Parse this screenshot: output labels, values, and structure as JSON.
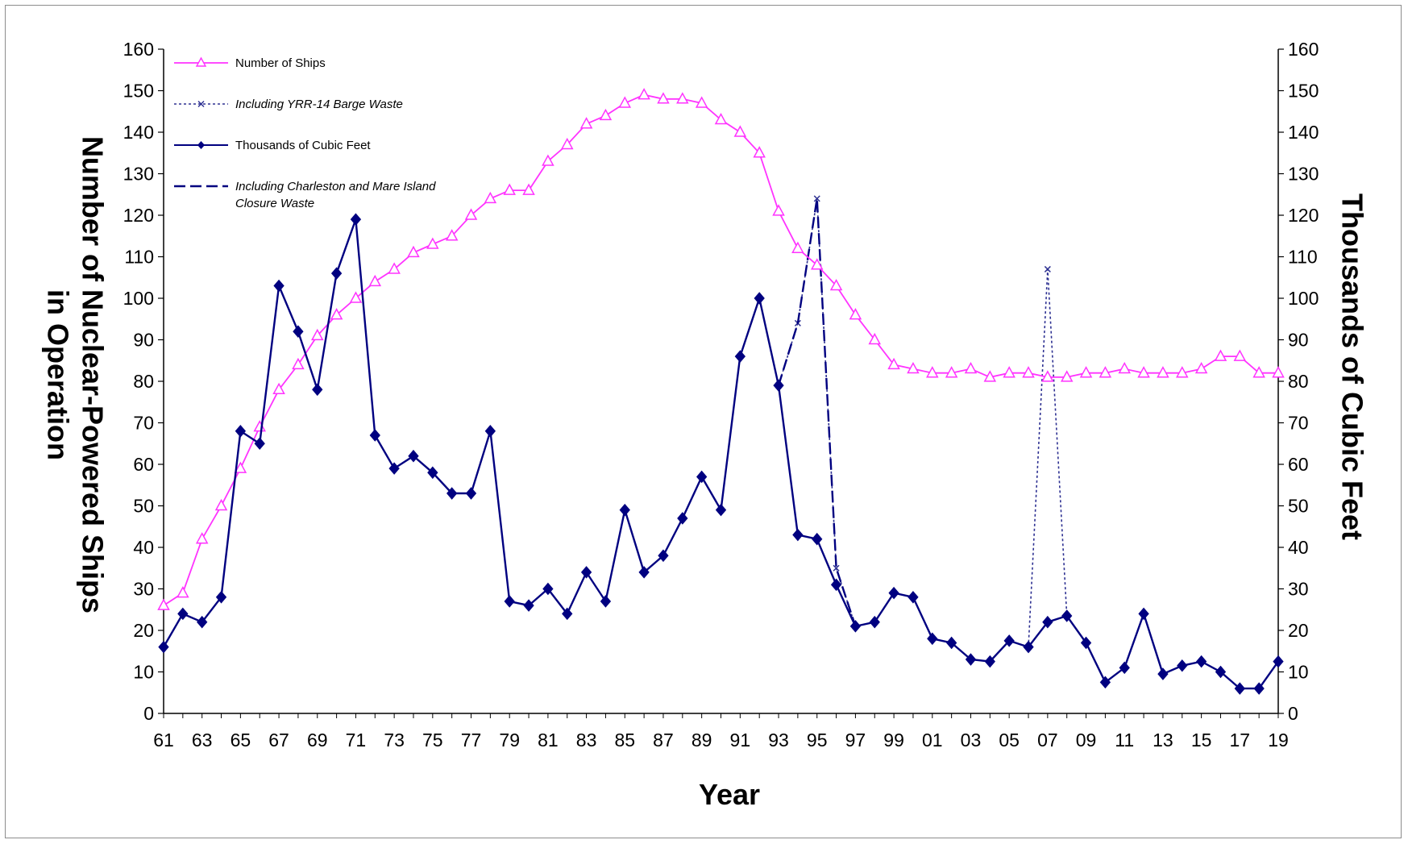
{
  "chart_data": {
    "type": "line",
    "xlabel": "Year",
    "ylabel_left": [
      "Number of Nuclear-Powered Ships",
      "in Operation"
    ],
    "ylabel_right": "Thousands of Cubic Feet",
    "ylim": [
      0,
      160
    ],
    "y_ticks": [
      0,
      10,
      20,
      30,
      40,
      50,
      60,
      70,
      80,
      90,
      100,
      110,
      120,
      130,
      140,
      150,
      160
    ],
    "x_ticks": [
      "61",
      "63",
      "65",
      "67",
      "69",
      "71",
      "73",
      "75",
      "77",
      "79",
      "81",
      "83",
      "85",
      "87",
      "89",
      "91",
      "93",
      "95",
      "97",
      "99",
      "01",
      "03",
      "05",
      "07",
      "09",
      "11",
      "13",
      "15",
      "17",
      "19"
    ],
    "grid": false,
    "legend": {
      "placement": "top-left",
      "entries": [
        {
          "label": "Number of Ships",
          "italic": false
        },
        {
          "label": "Including YRR-14 Barge Waste",
          "italic": true
        },
        {
          "label": "Thousands of Cubic Feet",
          "italic": false
        },
        {
          "label_lines": [
            "Including Charleston and Mare Island",
            "Closure Waste"
          ],
          "italic": true
        }
      ]
    },
    "colors": {
      "ships": "#ff33ff",
      "cubic_feet": "#000080",
      "yrr14": "#2e3192",
      "charleston": "#000080"
    },
    "series": [
      {
        "name": "Number of Ships",
        "x": [
          1961,
          1962,
          1963,
          1964,
          1965,
          1966,
          1967,
          1968,
          1969,
          1970,
          1971,
          1972,
          1973,
          1974,
          1975,
          1976,
          1977,
          1978,
          1979,
          1980,
          1981,
          1982,
          1983,
          1984,
          1985,
          1986,
          1987,
          1988,
          1989,
          1990,
          1991,
          1992,
          1993,
          1994,
          1995,
          1996,
          1997,
          1998,
          1999,
          2000,
          2001,
          2002,
          2003,
          2004,
          2005,
          2006,
          2007,
          2008,
          2009,
          2010,
          2011,
          2012,
          2013,
          2014,
          2015,
          2016,
          2017,
          2018,
          2019
        ],
        "values": [
          26,
          29,
          42,
          50,
          59,
          69,
          78,
          84,
          91,
          96,
          100,
          104,
          107,
          111,
          113,
          115,
          120,
          124,
          126,
          126,
          133,
          137,
          142,
          144,
          147,
          149,
          148,
          148,
          147,
          143,
          140,
          135,
          121,
          112,
          108,
          103,
          96,
          90,
          84,
          83,
          82,
          82,
          83,
          81,
          82,
          82,
          81,
          81,
          82,
          82,
          83,
          82,
          82,
          82,
          83,
          86,
          86,
          82,
          82
        ]
      },
      {
        "name": "Thousands of Cubic Feet",
        "x": [
          1961,
          1962,
          1963,
          1964,
          1965,
          1966,
          1967,
          1968,
          1969,
          1970,
          1971,
          1972,
          1973,
          1974,
          1975,
          1976,
          1977,
          1978,
          1979,
          1980,
          1981,
          1982,
          1983,
          1984,
          1985,
          1986,
          1987,
          1988,
          1989,
          1990,
          1991,
          1992,
          1993,
          1994,
          1995,
          1996,
          1997,
          1998,
          1999,
          2000,
          2001,
          2002,
          2003,
          2004,
          2005,
          2006,
          2007,
          2008,
          2009,
          2010,
          2011,
          2012,
          2013,
          2014,
          2015,
          2016,
          2017,
          2018,
          2019
        ],
        "values": [
          16,
          24,
          22,
          28,
          68,
          65,
          103,
          92,
          78,
          106,
          119,
          67,
          59,
          62,
          58,
          53,
          53,
          68,
          27,
          26,
          30,
          24,
          34,
          27,
          49,
          34,
          38,
          47,
          57,
          49,
          86,
          100,
          79,
          43,
          42,
          31,
          21,
          22,
          29,
          28,
          18,
          17,
          13,
          12.5,
          17.5,
          16,
          22,
          23.5,
          17,
          7.5,
          11,
          24,
          9.5,
          11.5,
          12.5,
          10,
          6,
          6,
          12.5
        ]
      },
      {
        "name": "Including YRR-14 Barge Waste",
        "x": [
          1993,
          1994,
          1995,
          1996,
          1997,
          2006,
          2007,
          2008
        ],
        "values": [
          79,
          94,
          124,
          35,
          21,
          16,
          107,
          23.5
        ]
      },
      {
        "name": "Including Charleston and Mare Island Closure Waste",
        "x": [
          1993,
          1994,
          1995,
          1996,
          1997
        ],
        "values": [
          79,
          94,
          124,
          35,
          21
        ]
      }
    ]
  }
}
